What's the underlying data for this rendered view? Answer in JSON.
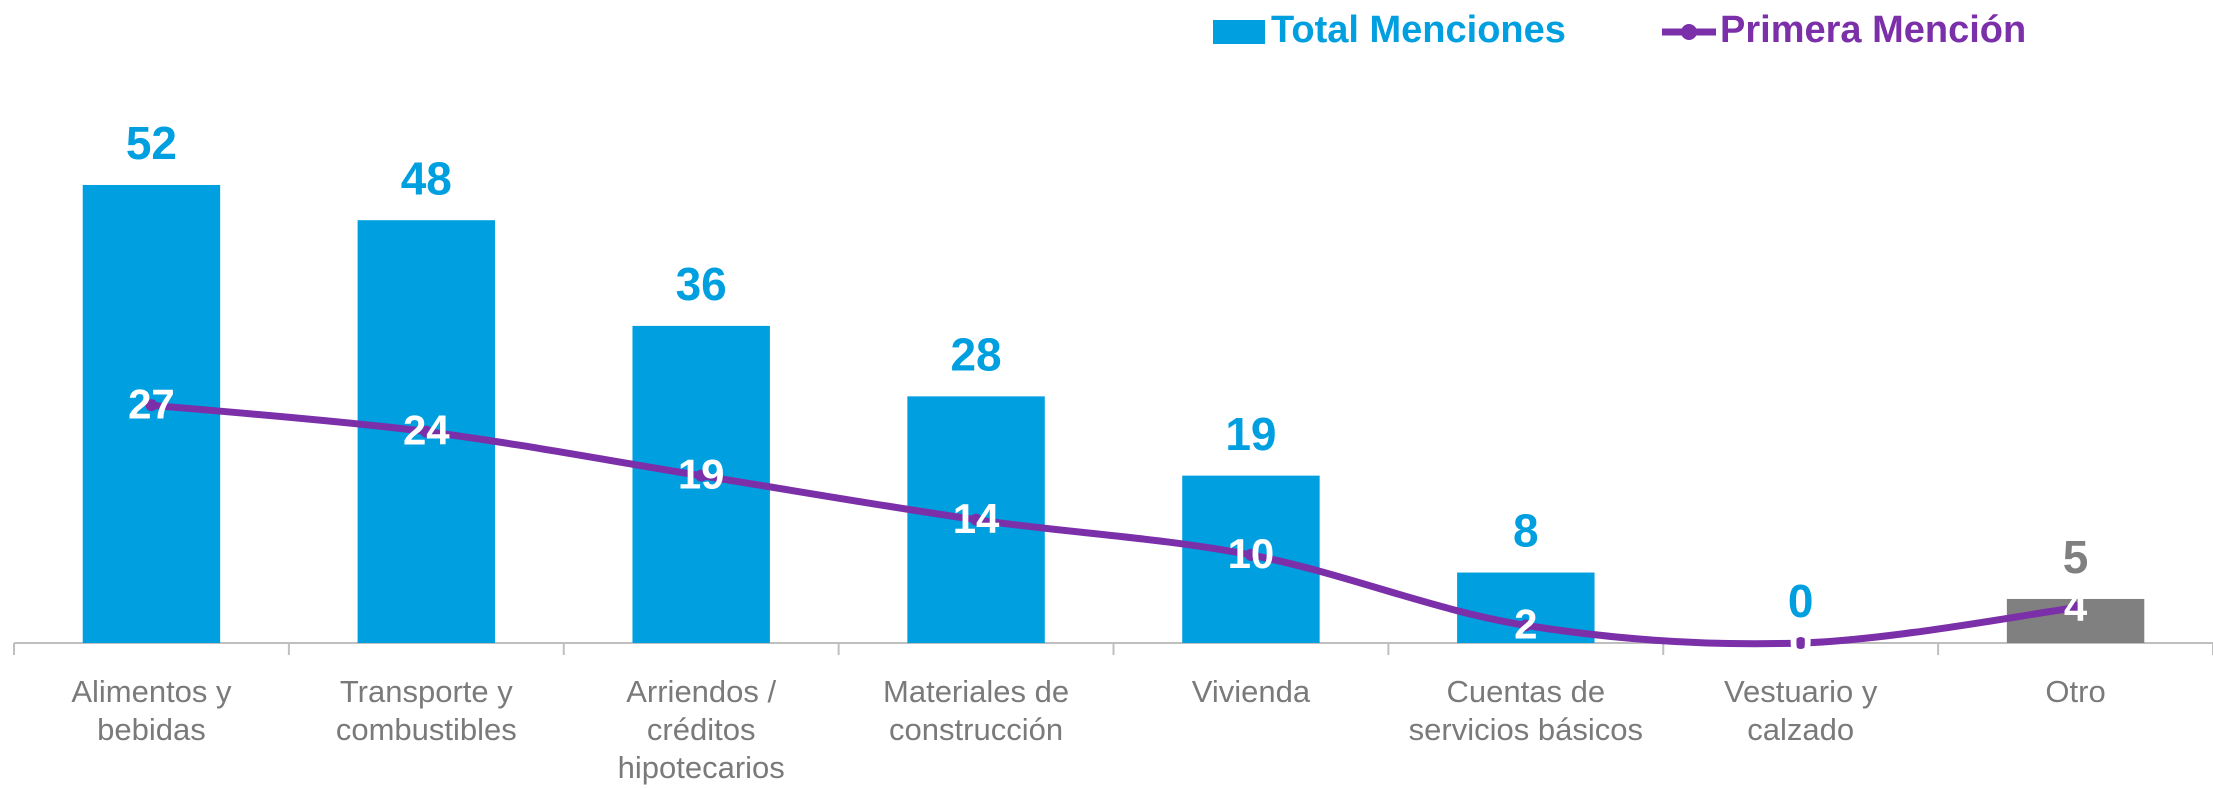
{
  "chart_data": {
    "type": "bar_line",
    "categories": [
      "Alimentos y bebidas",
      "Transporte y combustibles",
      "Arriendos / créditos hipotecarios",
      "Materiales de construcción",
      "Vivienda",
      "Cuentas de servicios básicos",
      "Vestuario y calzado",
      "Otro"
    ],
    "series": [
      {
        "name": "Total Menciones",
        "type": "bar",
        "color": "#009fdf",
        "colors": [
          "#009fdf",
          "#009fdf",
          "#009fdf",
          "#009fdf",
          "#009fdf",
          "#009fdf",
          "#009fdf",
          "#808080"
        ],
        "values": [
          52,
          48,
          36,
          28,
          19,
          8,
          0,
          5
        ]
      },
      {
        "name": "Primera Mención",
        "type": "line",
        "color": "#7b2fa8",
        "values": [
          27,
          24,
          19,
          14,
          10,
          2,
          0,
          4
        ]
      }
    ],
    "ylim": [
      0,
      73
    ],
    "legend": "top-right"
  }
}
